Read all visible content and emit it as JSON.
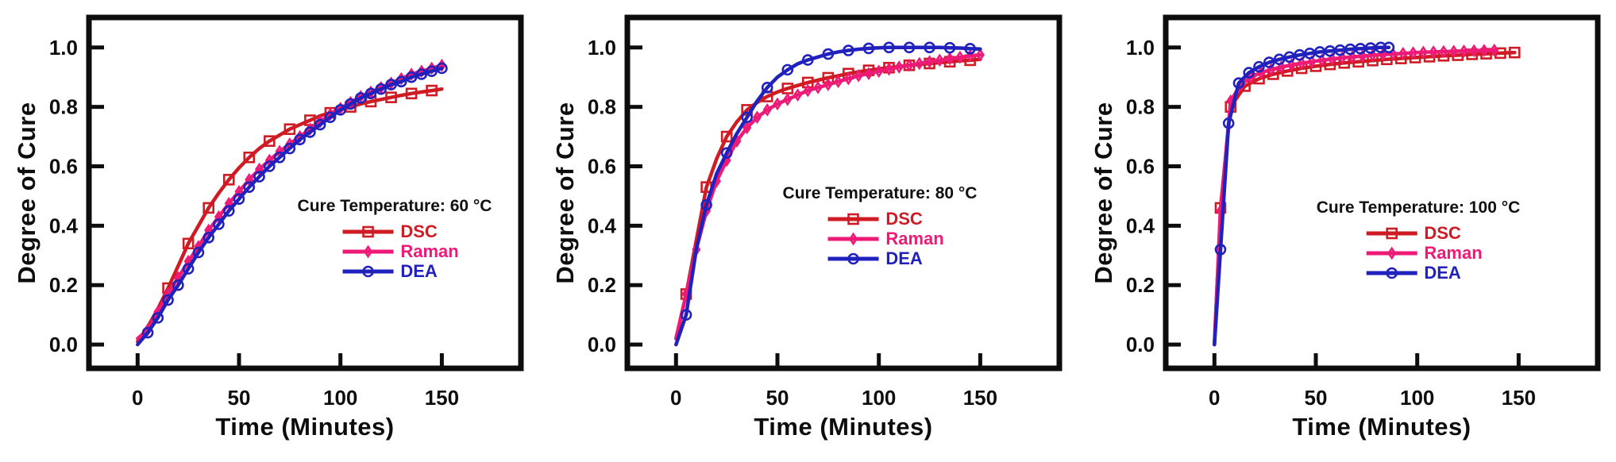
{
  "figure": {
    "background": "#ffffff",
    "axis_color": "#0d0d0d",
    "xlabel": "Time (Minutes)",
    "ylabel": "Degree of Cure"
  },
  "chart_data": [
    {
      "type": "line",
      "annotation": "Cure Temperature: 60 °C",
      "xlabel": "Time (Minutes)",
      "ylabel": "Degree of Cure",
      "xlim": [
        -24,
        189
      ],
      "ylim": [
        -0.08,
        1.101
      ],
      "xticks": [
        "0",
        "50",
        "100",
        "150"
      ],
      "yticks": [
        "0.0",
        "0.2",
        "0.4",
        "0.6",
        "0.8",
        "1.0"
      ],
      "grid": false,
      "legend_position": "inside-right-middle",
      "series": [
        {
          "name": "DSC",
          "color": "#cf1b24",
          "marker": "square",
          "marker_every": 2,
          "marker_offset": 3,
          "x": [
            0,
            5,
            10,
            15,
            20,
            25,
            30,
            35,
            40,
            45,
            50,
            55,
            60,
            65,
            70,
            75,
            80,
            85,
            90,
            95,
            100,
            105,
            110,
            115,
            120,
            125,
            130,
            135,
            140,
            145,
            150
          ],
          "y": [
            0.01,
            0.06,
            0.12,
            0.19,
            0.265,
            0.34,
            0.4,
            0.46,
            0.51,
            0.555,
            0.595,
            0.63,
            0.66,
            0.685,
            0.705,
            0.725,
            0.74,
            0.755,
            0.77,
            0.78,
            0.79,
            0.8,
            0.81,
            0.818,
            0.825,
            0.832,
            0.839,
            0.845,
            0.85,
            0.855,
            0.86
          ]
        },
        {
          "name": "Raman",
          "color": "#ee1a78",
          "marker": "diamond",
          "marker_every": 1,
          "marker_offset": 1,
          "x": [
            0,
            5,
            10,
            15,
            20,
            25,
            30,
            35,
            40,
            45,
            50,
            55,
            60,
            65,
            70,
            75,
            80,
            85,
            90,
            95,
            100,
            105,
            110,
            115,
            120,
            125,
            130,
            135,
            140,
            145,
            150
          ],
          "y": [
            0.02,
            0.05,
            0.11,
            0.17,
            0.225,
            0.28,
            0.33,
            0.385,
            0.43,
            0.475,
            0.515,
            0.555,
            0.59,
            0.62,
            0.65,
            0.675,
            0.7,
            0.725,
            0.75,
            0.775,
            0.795,
            0.815,
            0.835,
            0.85,
            0.865,
            0.88,
            0.895,
            0.91,
            0.92,
            0.93,
            0.94
          ]
        },
        {
          "name": "DEA",
          "color": "#2121bd",
          "marker": "circle",
          "marker_every": 1,
          "marker_offset": 1,
          "x": [
            0,
            5,
            10,
            15,
            20,
            25,
            30,
            35,
            40,
            45,
            50,
            55,
            60,
            65,
            70,
            75,
            80,
            85,
            90,
            95,
            100,
            105,
            110,
            115,
            120,
            125,
            130,
            135,
            140,
            145,
            150
          ],
          "y": [
            0.0,
            0.04,
            0.09,
            0.15,
            0.2,
            0.255,
            0.31,
            0.36,
            0.405,
            0.45,
            0.49,
            0.53,
            0.565,
            0.6,
            0.63,
            0.66,
            0.69,
            0.715,
            0.74,
            0.765,
            0.79,
            0.81,
            0.83,
            0.845,
            0.86,
            0.875,
            0.885,
            0.9,
            0.91,
            0.92,
            0.93
          ]
        }
      ]
    },
    {
      "type": "line",
      "annotation": "Cure Temperature: 80 °C",
      "xlabel": "Time (Minutes)",
      "ylabel": "Degree of Cure",
      "xlim": [
        -24,
        189
      ],
      "ylim": [
        -0.08,
        1.101
      ],
      "xticks": [
        "0",
        "50",
        "100",
        "150"
      ],
      "yticks": [
        "0.0",
        "0.2",
        "0.4",
        "0.6",
        "0.8",
        "1.0"
      ],
      "grid": false,
      "legend_position": "inside-right-middle",
      "series": [
        {
          "name": "DSC",
          "color": "#cf1b24",
          "marker": "square",
          "marker_every": 2,
          "marker_offset": 1,
          "x": [
            0,
            5,
            10,
            15,
            20,
            25,
            30,
            35,
            40,
            45,
            50,
            55,
            60,
            65,
            70,
            75,
            80,
            85,
            90,
            95,
            100,
            105,
            110,
            115,
            120,
            125,
            130,
            135,
            140,
            145,
            150
          ],
          "y": [
            0.02,
            0.17,
            0.35,
            0.53,
            0.625,
            0.7,
            0.75,
            0.79,
            0.815,
            0.835,
            0.85,
            0.862,
            0.872,
            0.882,
            0.89,
            0.898,
            0.905,
            0.912,
            0.918,
            0.923,
            0.928,
            0.932,
            0.936,
            0.94,
            0.943,
            0.946,
            0.949,
            0.952,
            0.955,
            0.957,
            0.96
          ]
        },
        {
          "name": "Raman",
          "color": "#ee1a78",
          "marker": "diamond",
          "marker_every": 1,
          "marker_offset": 1,
          "x": [
            0,
            5,
            10,
            15,
            20,
            25,
            30,
            35,
            40,
            45,
            50,
            55,
            60,
            65,
            70,
            75,
            80,
            85,
            90,
            95,
            100,
            105,
            110,
            115,
            120,
            125,
            130,
            135,
            140,
            145,
            150
          ],
          "y": [
            0.02,
            0.17,
            0.32,
            0.45,
            0.55,
            0.62,
            0.685,
            0.73,
            0.765,
            0.79,
            0.81,
            0.825,
            0.84,
            0.855,
            0.865,
            0.875,
            0.885,
            0.895,
            0.905,
            0.912,
            0.92,
            0.927,
            0.934,
            0.94,
            0.946,
            0.952,
            0.957,
            0.962,
            0.967,
            0.972,
            0.975
          ]
        },
        {
          "name": "DEA",
          "color": "#2121bd",
          "marker": "circle",
          "marker_every": 2,
          "marker_offset": 1,
          "x": [
            0,
            5,
            10,
            15,
            20,
            25,
            30,
            35,
            40,
            45,
            50,
            55,
            60,
            65,
            70,
            75,
            80,
            85,
            90,
            95,
            100,
            105,
            110,
            115,
            120,
            125,
            130,
            135,
            140,
            145,
            150
          ],
          "y": [
            0.0,
            0.1,
            0.32,
            0.47,
            0.575,
            0.645,
            0.71,
            0.765,
            0.82,
            0.865,
            0.9,
            0.925,
            0.945,
            0.958,
            0.968,
            0.978,
            0.985,
            0.99,
            0.994,
            0.997,
            0.999,
            1.0,
            1.0,
            1.0,
            1.0,
            1.0,
            1.0,
            0.999,
            0.998,
            0.996,
            0.995
          ]
        }
      ]
    },
    {
      "type": "line",
      "annotation": "Cure Temperature: 100 °C",
      "xlabel": "Time (Minutes)",
      "ylabel": "Degree of Cure",
      "xlim": [
        -24,
        189
      ],
      "ylim": [
        -0.08,
        1.101
      ],
      "xticks": [
        "0",
        "50",
        "100",
        "150"
      ],
      "yticks": [
        "0.0",
        "0.2",
        "0.4",
        "0.6",
        "0.8",
        "1.0"
      ],
      "grid": false,
      "legend_position": "inside-right-middle",
      "series": [
        {
          "name": "DSC",
          "color": "#cf1b24",
          "marker": "square",
          "marker_every": 1,
          "marker_offset": 1,
          "x": [
            0,
            3,
            8,
            15,
            22,
            29,
            36,
            43,
            50,
            57,
            64,
            71,
            78,
            85,
            92,
            99,
            106,
            113,
            120,
            127,
            134,
            141,
            148
          ],
          "y": [
            0.0,
            0.46,
            0.8,
            0.87,
            0.895,
            0.91,
            0.921,
            0.93,
            0.937,
            0.943,
            0.948,
            0.952,
            0.956,
            0.96,
            0.963,
            0.966,
            0.969,
            0.972,
            0.974,
            0.977,
            0.979,
            0.981,
            0.983
          ]
        },
        {
          "name": "Raman",
          "color": "#ee1a78",
          "marker": "diamond",
          "marker_every": 1,
          "marker_offset": 1,
          "x": [
            0,
            3,
            8,
            13,
            18,
            23,
            28,
            33,
            38,
            43,
            48,
            53,
            58,
            63,
            68,
            73,
            78,
            83,
            88,
            93,
            98,
            103,
            108,
            113,
            118,
            123,
            128,
            133,
            138
          ],
          "y": [
            0.0,
            0.45,
            0.82,
            0.875,
            0.9,
            0.915,
            0.926,
            0.934,
            0.941,
            0.947,
            0.952,
            0.957,
            0.961,
            0.965,
            0.968,
            0.971,
            0.974,
            0.976,
            0.978,
            0.98,
            0.982,
            0.984,
            0.985,
            0.986,
            0.987,
            0.988,
            0.989,
            0.99,
            0.991
          ]
        },
        {
          "name": "DEA",
          "color": "#2121bd",
          "marker": "circle",
          "marker_every": 1,
          "marker_offset": 1,
          "x": [
            0,
            3,
            7,
            12,
            17,
            22,
            27,
            32,
            37,
            42,
            47,
            52,
            57,
            62,
            67,
            72,
            77,
            82,
            86
          ],
          "y": [
            0.0,
            0.32,
            0.745,
            0.88,
            0.915,
            0.935,
            0.95,
            0.96,
            0.968,
            0.975,
            0.98,
            0.985,
            0.988,
            0.991,
            0.994,
            0.996,
            0.998,
            1.0,
            1.0
          ]
        }
      ]
    }
  ]
}
